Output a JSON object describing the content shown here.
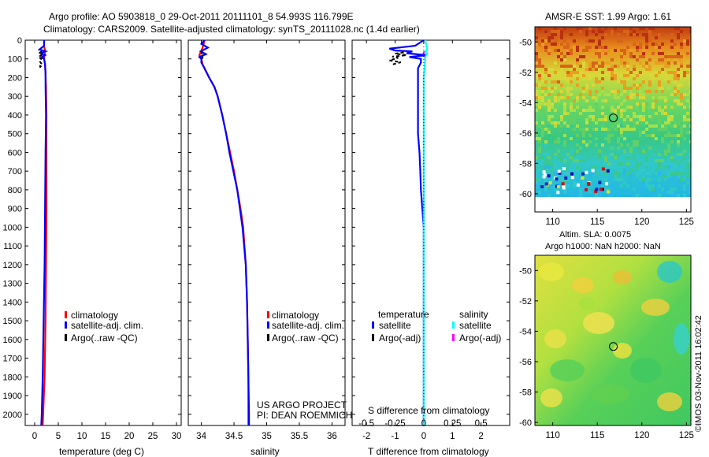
{
  "header": {
    "line1": "Argo profile: AO 5903818_0 29-Oct-2011 20111101_8 54.993S 116.799E",
    "line2": "Climatology: CARS2009. Satellite-adjusted climatology: synTS_20111028.nc (1.4d earlier)"
  },
  "colors": {
    "climatology": "#ff0000",
    "satellite": "#0000ff",
    "argo": "#000000",
    "sal_satellite": "#00ffff",
    "sal_argo": "#ff00ff"
  },
  "chart_data": [
    {
      "type": "line",
      "id": "temperature",
      "xlabel": "temperature (deg C)",
      "xlim": [
        -2,
        31
      ],
      "ylim": [
        0,
        2060
      ],
      "xticks": [
        "0",
        "5",
        "10",
        "15",
        "20",
        "25",
        "30"
      ],
      "yticks": [
        "0",
        "100",
        "200",
        "300",
        "400",
        "500",
        "600",
        "700",
        "800",
        "900",
        "1000",
        "1100",
        "1200",
        "1300",
        "1400",
        "1500",
        "1600",
        "1700",
        "1800",
        "1900",
        "2000"
      ],
      "legend": [
        "climatology",
        "satellite-adj. clim.",
        "Argo(..raw -QC)"
      ],
      "series": [
        {
          "name": "climatology",
          "depth": [
            0,
            30,
            60,
            80,
            100,
            130,
            180,
            250,
            400,
            600,
            900,
            1200,
            1500,
            1800,
            2000,
            2060
          ],
          "values": [
            2.0,
            2.0,
            2.2,
            2.1,
            2.0,
            2.2,
            2.3,
            2.4,
            2.5,
            2.5,
            2.5,
            2.4,
            2.3,
            2.1,
            1.8,
            1.7
          ]
        },
        {
          "name": "satellite-adj. clim.",
          "depth": [
            0,
            30,
            50,
            60,
            70,
            80,
            90,
            100,
            130,
            180,
            250,
            400,
            600,
            900,
            1200,
            1500,
            1800,
            2000,
            2060
          ],
          "values": [
            2.0,
            2.0,
            1.0,
            2.3,
            1.3,
            2.2,
            1.5,
            2.0,
            2.2,
            2.3,
            2.3,
            2.4,
            2.3,
            2.2,
            2.1,
            1.9,
            1.7,
            1.5,
            1.4
          ]
        },
        {
          "name": "Argo(..raw -QC)",
          "depth": [
            60,
            70,
            80,
            90,
            100,
            110,
            125,
            135,
            140,
            150
          ],
          "values": [
            1.5,
            0.9,
            1.4,
            0.8,
            1.4,
            1.0,
            1.4,
            1.0,
            1.3,
            0.9
          ]
        }
      ]
    },
    {
      "type": "line",
      "id": "salinity",
      "xlabel": "salinity",
      "xlim": [
        33.8,
        36.2
      ],
      "ylim": [
        0,
        2060
      ],
      "xticks": [
        "34",
        "34.5",
        "35",
        "35.5",
        "36"
      ],
      "legend": [
        "climatology",
        "satellite-adj. clim.",
        "Argo(..raw -QC)"
      ],
      "annotation": [
        "US ARGO PROJECT",
        "PI: DEAN ROEMMICH"
      ],
      "series": [
        {
          "name": "climatology",
          "depth": [
            0,
            40,
            80,
            100,
            130,
            160,
            200,
            250,
            300,
            400,
            500,
            600,
            700,
            800,
            900,
            1000,
            1200,
            1400,
            1600,
            1800,
            2000,
            2060
          ],
          "values": [
            34.05,
            34.02,
            33.97,
            34.0,
            34.02,
            34.06,
            34.12,
            34.2,
            34.25,
            34.32,
            34.38,
            34.44,
            34.5,
            34.55,
            34.6,
            34.64,
            34.68,
            34.7,
            34.71,
            34.72,
            34.72,
            34.72
          ]
        },
        {
          "name": "satellite-adj. clim.",
          "depth": [
            0,
            20,
            40,
            60,
            75,
            90,
            100,
            120,
            150,
            200,
            250,
            300,
            400,
            500,
            600,
            700,
            800,
            900,
            1000,
            1200,
            1400,
            1600,
            1800,
            2000,
            2060
          ],
          "values": [
            34.05,
            34.0,
            34.1,
            33.99,
            34.07,
            33.97,
            34.0,
            34.0,
            34.05,
            34.12,
            34.2,
            34.25,
            34.32,
            34.38,
            34.43,
            34.49,
            34.55,
            34.59,
            34.63,
            34.68,
            34.7,
            34.71,
            34.72,
            34.73,
            34.73
          ]
        },
        {
          "name": "Argo(..raw -QC)",
          "depth": [
            60,
            70,
            80,
            90,
            100
          ],
          "values": [
            34.0,
            34.01,
            34.0,
            34.02,
            34.01
          ]
        }
      ]
    },
    {
      "type": "line",
      "id": "difference",
      "xlabel": "T difference from climatology",
      "xlabel_top": "S difference from climatology",
      "xlim": [
        -2.5,
        3.0
      ],
      "ylim": [
        0,
        2060
      ],
      "xticks": [
        "-2",
        "-1",
        "0",
        "1",
        "2"
      ],
      "xticks_top": [
        "-0.5",
        "-0.25",
        "0",
        "0.25",
        "0.5"
      ],
      "legend_temperature": [
        "temperature",
        "satellite",
        "Argo(-adj)"
      ],
      "legend_salinity": [
        "salinity",
        "satellite",
        "Argo(-adj)"
      ],
      "series": [
        {
          "name": "temperature satellite",
          "depth": [
            0,
            30,
            45,
            55,
            60,
            70,
            80,
            90,
            100,
            120,
            150,
            200,
            300,
            400,
            500,
            600,
            700,
            800,
            900,
            1000,
            1200,
            1500,
            1800,
            2000,
            2060
          ],
          "values": [
            0.0,
            -0.3,
            -1.2,
            -1.0,
            -0.4,
            -0.6,
            0.1,
            -0.5,
            -0.1,
            -0.1,
            -0.2,
            -0.2,
            -0.2,
            -0.2,
            -0.2,
            -0.15,
            -0.12,
            -0.1,
            -0.05,
            0.0,
            0.0,
            0.0,
            0.0,
            0.0,
            0.0
          ]
        },
        {
          "name": "temperature Argo(-adj)",
          "depth": [
            65,
            72,
            80,
            88,
            95,
            108,
            118,
            130
          ],
          "values": [
            -0.7,
            -1.0,
            -0.6,
            -1.1,
            -0.9,
            -1.2,
            -0.8,
            -1.1
          ]
        },
        {
          "name": "salinity satellite",
          "depth": [
            0,
            30,
            50,
            60,
            75,
            90,
            100,
            130,
            200,
            400,
            700,
            1000,
            1500,
            2000,
            2060
          ],
          "values": [
            0.05,
            0.1,
            0.12,
            0.06,
            0.12,
            0.04,
            0.05,
            0.04,
            0.0,
            0.0,
            0.0,
            0.0,
            0.0,
            0.0,
            0.0
          ]
        },
        {
          "name": "salinity Argo(-adj)",
          "depth": [
            60,
            70,
            80,
            90
          ],
          "values": [
            0.02,
            -0.01,
            0.03,
            0.0
          ]
        }
      ]
    },
    {
      "type": "heatmap",
      "id": "sst_map",
      "title": "AMSR-E SST: 1.99 Argo: 1.61",
      "xlim": [
        108,
        125.5
      ],
      "ylim": [
        -61.2,
        -49
      ],
      "xticks": [
        "110",
        "115",
        "120",
        "125"
      ],
      "yticks": [
        "-50",
        "-52",
        "-54",
        "-56",
        "-58",
        "-60"
      ],
      "marker": {
        "lon": 116.8,
        "lat": -55.0
      }
    },
    {
      "type": "heatmap",
      "id": "sla_map",
      "title": "Altim. SLA: 0.0075",
      "title2": "Argo h1000: NaN h2000: NaN",
      "xlim": [
        108,
        125.5
      ],
      "ylim": [
        -60.2,
        -49
      ],
      "xticks": [
        "110",
        "115",
        "120",
        "125"
      ],
      "yticks": [
        "-50",
        "-52",
        "-54",
        "-56",
        "-58",
        "-60"
      ],
      "marker": {
        "lon": 116.8,
        "lat": -55.0
      }
    }
  ],
  "watermark": "©IMOS 03-Nov-2011 16:02:42"
}
